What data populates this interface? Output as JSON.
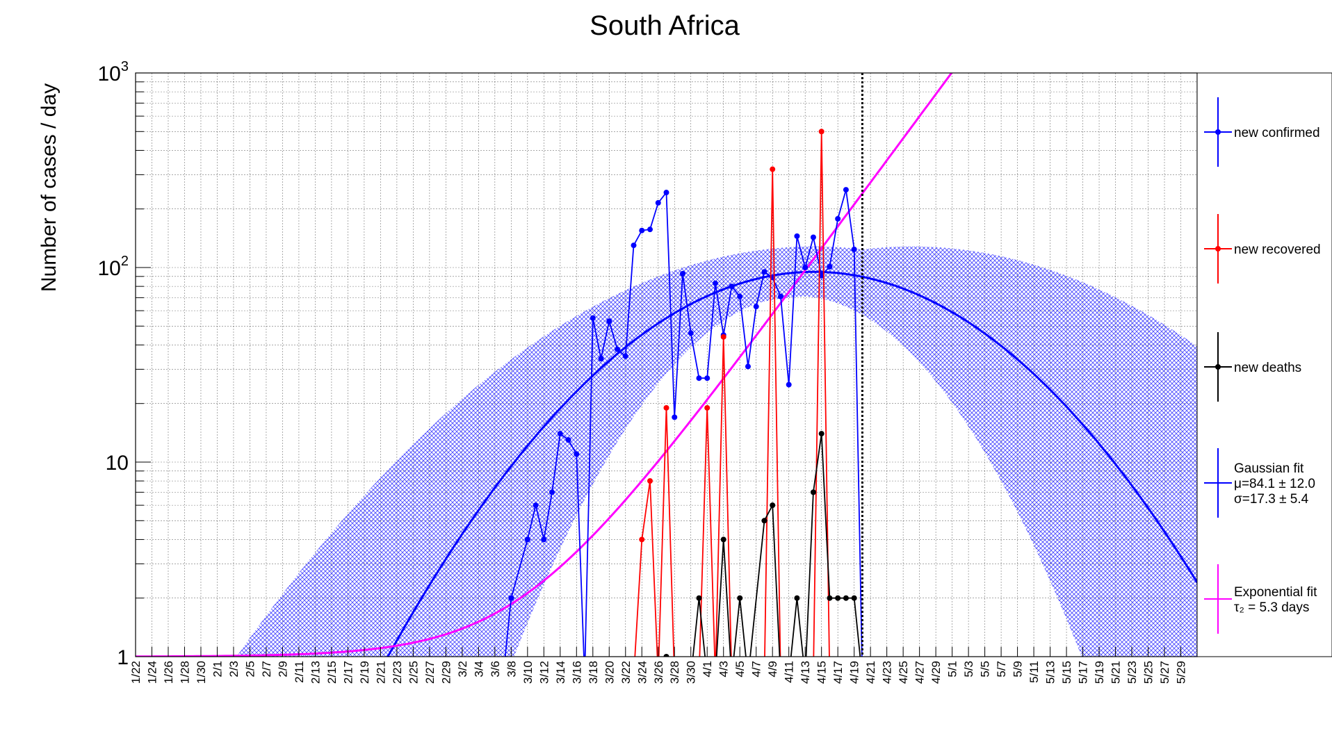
{
  "chart_data": {
    "type": "line",
    "title": "South Africa",
    "xlabel": "",
    "ylabel": "Number of cases / day",
    "yscale": "log",
    "ylim": [
      1,
      1000
    ],
    "ytick_labels": [
      "1",
      "10",
      "10",
      "10"
    ],
    "ytick_exponents": [
      "",
      "",
      "2",
      "3"
    ],
    "xlim": [
      "1/22",
      "5/31"
    ],
    "grid": true,
    "legend_position": "right",
    "x_tick_labels": [
      "1/22",
      "1/24",
      "1/26",
      "1/28",
      "1/30",
      "2/1",
      "2/3",
      "2/5",
      "2/7",
      "2/9",
      "2/11",
      "2/13",
      "2/15",
      "2/17",
      "2/19",
      "2/21",
      "2/23",
      "2/25",
      "2/27",
      "2/29",
      "3/2",
      "3/4",
      "3/6",
      "3/8",
      "3/10",
      "3/12",
      "3/14",
      "3/16",
      "3/18",
      "3/20",
      "3/22",
      "3/24",
      "3/26",
      "3/28",
      "3/30",
      "4/1",
      "4/3",
      "4/5",
      "4/7",
      "4/9",
      "4/11",
      "4/13",
      "4/15",
      "4/17",
      "4/19",
      "4/21",
      "4/23",
      "4/25",
      "4/27",
      "4/29",
      "5/1",
      "5/3",
      "5/5",
      "5/7",
      "5/9",
      "5/11",
      "5/13",
      "5/15",
      "5/17",
      "5/19",
      "5/21",
      "5/23",
      "5/25",
      "5/27",
      "5/29"
    ],
    "current_date_marker": "4/20",
    "series": [
      {
        "name": "new confirmed",
        "color": "#0000ff",
        "x": [
          "3/7",
          "3/8",
          "3/10",
          "3/11",
          "3/12",
          "3/13",
          "3/14",
          "3/15",
          "3/16",
          "3/17",
          "3/18",
          "3/19",
          "3/20",
          "3/21",
          "3/22",
          "3/23",
          "3/24",
          "3/25",
          "3/26",
          "3/27",
          "3/28",
          "3/29",
          "3/30",
          "3/31",
          "4/1",
          "4/2",
          "4/3",
          "4/4",
          "4/5",
          "4/6",
          "4/7",
          "4/8",
          "4/9",
          "4/10",
          "4/11",
          "4/12",
          "4/13",
          "4/14",
          "4/15",
          "4/16",
          "4/17",
          "4/18",
          "4/19",
          "4/20"
        ],
        "values": [
          null,
          2,
          4,
          6,
          4,
          7,
          14,
          13,
          11,
          null,
          55,
          34,
          53,
          38,
          35,
          130,
          155,
          157,
          215,
          243,
          17,
          93,
          46,
          27,
          27,
          83,
          45,
          80,
          71,
          31,
          63,
          95,
          89,
          71,
          25,
          145,
          100,
          143,
          91,
          101,
          178,
          251,
          124,
          null
        ]
      },
      {
        "name": "new recovered",
        "color": "#ff0000",
        "x": [
          "3/23",
          "3/24",
          "3/25",
          "3/26",
          "3/27",
          "3/28",
          "3/31",
          "4/1",
          "4/2",
          "4/3",
          "4/4",
          "4/8",
          "4/9",
          "4/10",
          "4/14",
          "4/15",
          "4/16",
          "4/17"
        ],
        "values": [
          null,
          4,
          8,
          null,
          19,
          null,
          null,
          19,
          null,
          44,
          null,
          null,
          320,
          null,
          null,
          500,
          null,
          null
        ]
      },
      {
        "name": "new deaths",
        "color": "#000000",
        "x": [
          "3/26",
          "3/27",
          "3/30",
          "3/31",
          "4/1",
          "4/2",
          "4/3",
          "4/4",
          "4/5",
          "4/6",
          "4/8",
          "4/9",
          "4/10",
          "4/11",
          "4/12",
          "4/13",
          "4/14",
          "4/15",
          "4/16",
          "4/17",
          "4/18",
          "4/19",
          "4/20"
        ],
        "values": [
          null,
          1,
          null,
          2,
          null,
          null,
          4,
          null,
          2,
          null,
          5,
          6,
          null,
          null,
          2,
          null,
          7,
          14,
          2,
          2,
          2,
          2,
          null
        ]
      }
    ],
    "fits": [
      {
        "name": "Gaussian fit",
        "color": "#0000ff",
        "label_lines": [
          "Gaussian fit",
          "μ=84.1 ± 12.0",
          "σ=17.3 ± 5.4"
        ],
        "mu": 84.1,
        "mu_err": 12.0,
        "sigma": 17.3,
        "sigma_err": 5.4,
        "peak": 95,
        "band_color": "#3333ff"
      },
      {
        "name": "Exponential fit",
        "color": "#ff00ff",
        "label_lines": [
          "Exponential fit",
          "τ₂ = 5.3 days"
        ],
        "tau2_days": 5.3
      }
    ]
  }
}
